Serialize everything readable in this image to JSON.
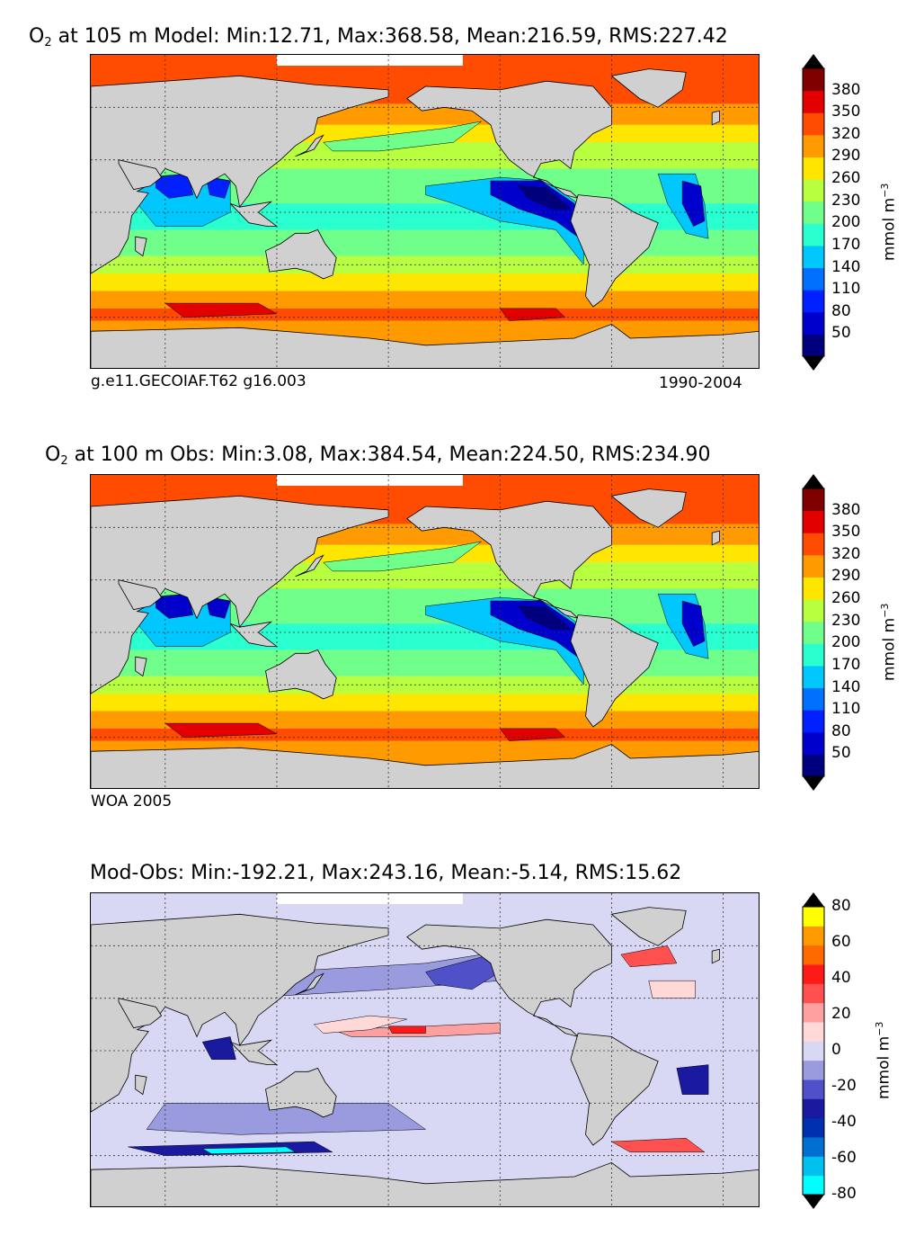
{
  "chart_data": [
    {
      "type": "heatmap",
      "title_prefix": "O",
      "title_sub": "2",
      "title_rest": "at 105 m Model: Min:12.71, Max:368.58, Mean:216.59, RMS:227.42",
      "stats": {
        "min": 12.71,
        "max": 368.58,
        "mean": 216.59,
        "rms": 227.42
      },
      "depth": "105 m",
      "footer_left": "g.e11.GECOIAF.T62 g16.003",
      "footer_right": "1990-2004",
      "colorbar": {
        "ticks": [
          "50",
          "80",
          "110",
          "140",
          "170",
          "200",
          "230",
          "260",
          "290",
          "320",
          "350",
          "380"
        ],
        "unit_main": "mmol m",
        "unit_sup": "−3",
        "colors": [
          "#00007f",
          "#0000cd",
          "#0020ff",
          "#0070ff",
          "#00c8ff",
          "#2affd0",
          "#6fff8a",
          "#b8ff40",
          "#ffe600",
          "#ff9a00",
          "#ff4c00",
          "#e30000",
          "#800000"
        ]
      }
    },
    {
      "type": "heatmap",
      "title_prefix": "O",
      "title_sub": "2",
      "title_rest": "at 100 m Obs: Min:3.08, Max:384.54, Mean:224.50, RMS:234.90",
      "stats": {
        "min": 3.08,
        "max": 384.54,
        "mean": 224.5,
        "rms": 234.9
      },
      "depth": "100 m",
      "footer_left": "WOA 2005",
      "colorbar": {
        "ticks": [
          "50",
          "80",
          "110",
          "140",
          "170",
          "200",
          "230",
          "260",
          "290",
          "320",
          "350",
          "380"
        ],
        "unit_main": "mmol m",
        "unit_sup": "−3",
        "colors": [
          "#00007f",
          "#0000cd",
          "#0020ff",
          "#0070ff",
          "#00c8ff",
          "#2affd0",
          "#6fff8a",
          "#b8ff40",
          "#ffe600",
          "#ff9a00",
          "#ff4c00",
          "#e30000",
          "#800000"
        ]
      }
    },
    {
      "type": "heatmap",
      "title_full": "Mod-Obs: Min:-192.21, Max:243.16, Mean:-5.14, RMS:15.62",
      "stats": {
        "min": -192.21,
        "max": 243.16,
        "mean": -5.14,
        "rms": 15.62
      },
      "colorbar": {
        "ticks": [
          "80",
          "60",
          "40",
          "20",
          "0",
          "-20",
          "-40",
          "-60",
          "-80"
        ],
        "unit_main": "mmol m",
        "unit_sup": "−3",
        "colors": [
          "#00ffff",
          "#00c0f0",
          "#0070d0",
          "#0030b0",
          "#1a1aa0",
          "#5050c8",
          "#9a9ade",
          "#d8d8f4",
          "#ffd8d8",
          "#ffa0a0",
          "#ff5050",
          "#ff1a1a",
          "#ff6a00",
          "#ff9a00",
          "#ffff00"
        ]
      }
    }
  ],
  "colors": {
    "land": "#d0d0d0",
    "ice": "#ffffff"
  }
}
